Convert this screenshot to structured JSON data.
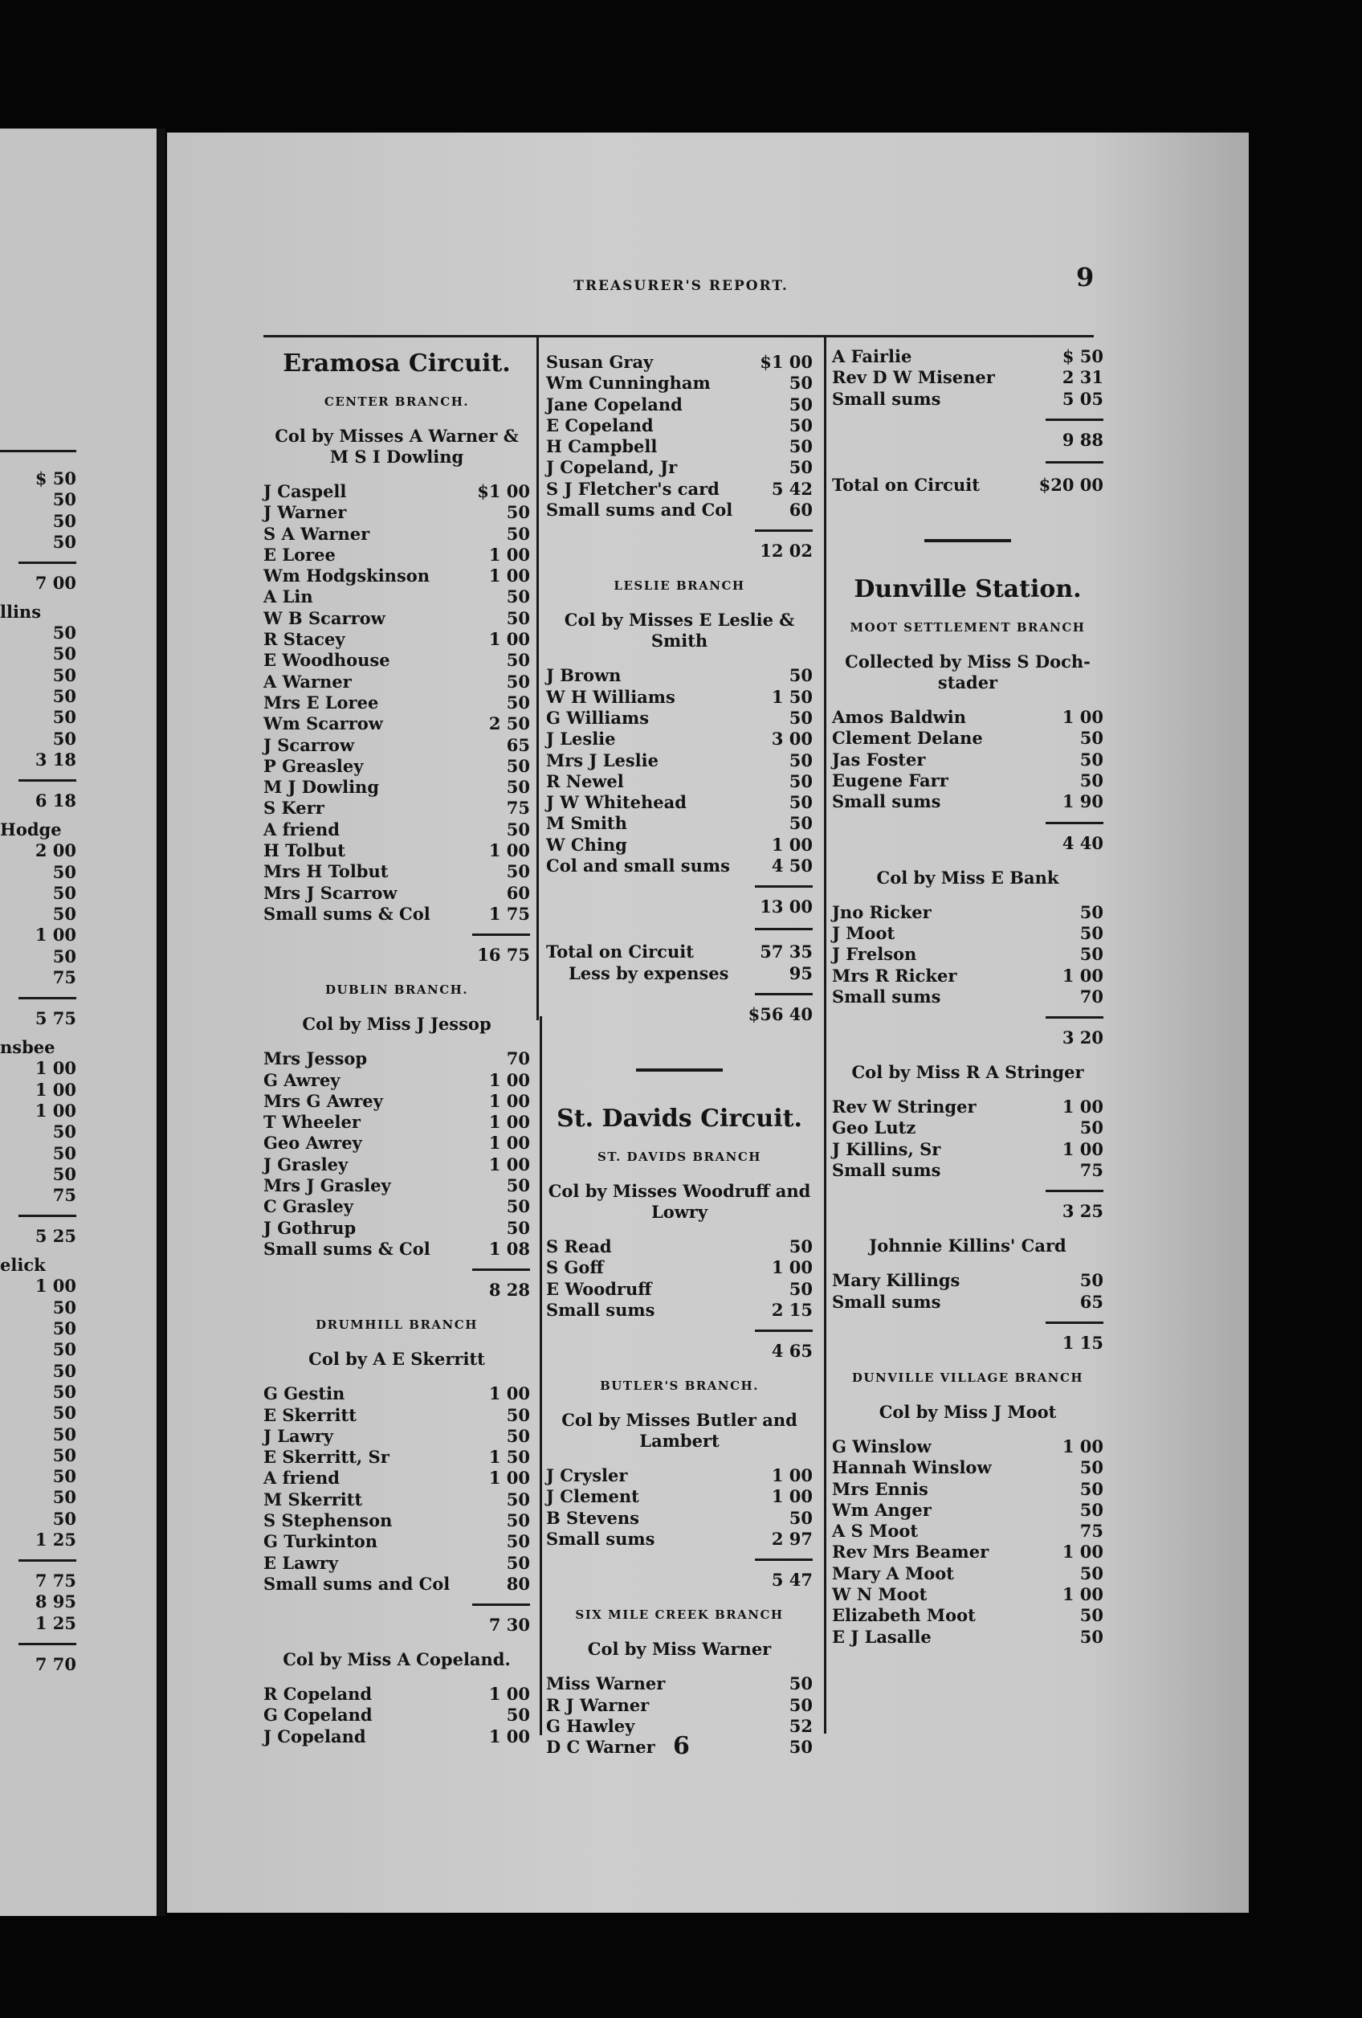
{
  "header": {
    "running_title": "TREASURER'S REPORT.",
    "page_number": "9"
  },
  "footer": {
    "signature_mark": "6"
  },
  "left_page_fragment": {
    "items": [
      {
        "type": "entry",
        "amount": "$ 50"
      },
      {
        "type": "entry",
        "amount": "50"
      },
      {
        "type": "entry",
        "amount": "50"
      },
      {
        "type": "entry",
        "amount": "50"
      },
      {
        "type": "subtotal",
        "amount": "7 00"
      },
      {
        "type": "fragment",
        "text": "llins"
      },
      {
        "type": "entry",
        "amount": "50"
      },
      {
        "type": "entry",
        "amount": "50"
      },
      {
        "type": "entry",
        "amount": "50"
      },
      {
        "type": "entry",
        "amount": "50"
      },
      {
        "type": "entry",
        "amount": "50"
      },
      {
        "type": "entry",
        "amount": "50"
      },
      {
        "type": "entry",
        "amount": "3 18"
      },
      {
        "type": "subtotal",
        "amount": "6 18"
      },
      {
        "type": "fragment",
        "text": "Hodge"
      },
      {
        "type": "entry",
        "amount": "2 00"
      },
      {
        "type": "entry",
        "amount": "50"
      },
      {
        "type": "entry",
        "amount": "50"
      },
      {
        "type": "entry",
        "amount": "50"
      },
      {
        "type": "entry",
        "amount": "1 00"
      },
      {
        "type": "entry",
        "amount": "50"
      },
      {
        "type": "entry",
        "amount": "75"
      },
      {
        "type": "subtotal",
        "amount": "5 75"
      },
      {
        "type": "fragment",
        "text": "nsbee"
      },
      {
        "type": "entry",
        "amount": "1 00"
      },
      {
        "type": "entry",
        "amount": "1 00"
      },
      {
        "type": "entry",
        "amount": "1 00"
      },
      {
        "type": "entry",
        "amount": "50"
      },
      {
        "type": "entry",
        "amount": "50"
      },
      {
        "type": "entry",
        "amount": "50"
      },
      {
        "type": "entry",
        "amount": "75"
      },
      {
        "type": "subtotal",
        "amount": "5 25"
      },
      {
        "type": "fragment",
        "text": "elick"
      },
      {
        "type": "entry",
        "amount": "1 00"
      },
      {
        "type": "entry",
        "amount": "50"
      },
      {
        "type": "entry",
        "amount": "50"
      },
      {
        "type": "entry",
        "amount": "50"
      },
      {
        "type": "entry",
        "amount": "50"
      },
      {
        "type": "entry",
        "amount": "50"
      },
      {
        "type": "entry",
        "amount": "50"
      },
      {
        "type": "entry",
        "amount": "50"
      },
      {
        "type": "entry",
        "amount": "50"
      },
      {
        "type": "entry",
        "amount": "50"
      },
      {
        "type": "entry",
        "amount": "50"
      },
      {
        "type": "entry",
        "amount": "50"
      },
      {
        "type": "entry",
        "amount": "1 25"
      },
      {
        "type": "subtotal",
        "amount": "7 75"
      },
      {
        "type": "entry",
        "amount": "8 95"
      },
      {
        "type": "entry",
        "amount": "1 25"
      },
      {
        "type": "subtotal",
        "amount": "7 70"
      }
    ]
  },
  "columns": [
    {
      "items": [
        {
          "type": "title",
          "text": "Eramosa Circuit."
        },
        {
          "type": "branch",
          "text": "CENTER BRANCH."
        },
        {
          "type": "collector",
          "text": "Col by Misses A Warner & M S I Dowling"
        },
        {
          "type": "entry",
          "name": "J Caspell",
          "amount": "$1 00"
        },
        {
          "type": "entry",
          "name": "J Warner",
          "amount": "50"
        },
        {
          "type": "entry",
          "name": "S A Warner",
          "amount": "50"
        },
        {
          "type": "entry",
          "name": "E Loree",
          "amount": "1 00"
        },
        {
          "type": "entry",
          "name": "Wm Hodgskinson",
          "amount": "1 00"
        },
        {
          "type": "entry",
          "name": "A Lin",
          "amount": "50"
        },
        {
          "type": "entry",
          "name": "W B Scarrow",
          "amount": "50"
        },
        {
          "type": "entry",
          "name": "R Stacey",
          "amount": "1 00"
        },
        {
          "type": "entry",
          "name": "E Woodhouse",
          "amount": "50"
        },
        {
          "type": "entry",
          "name": "A Warner",
          "amount": "50"
        },
        {
          "type": "entry",
          "name": "Mrs E Loree",
          "amount": "50"
        },
        {
          "type": "entry",
          "name": "Wm Scarrow",
          "amount": "2 50"
        },
        {
          "type": "entry",
          "name": "J Scarrow",
          "amount": "65"
        },
        {
          "type": "entry",
          "name": "P Greasley",
          "amount": "50"
        },
        {
          "type": "entry",
          "name": "M J Dowling",
          "amount": "50"
        },
        {
          "type": "entry",
          "name": "S Kerr",
          "amount": "75"
        },
        {
          "type": "entry",
          "name": "A friend",
          "amount": "50"
        },
        {
          "type": "entry",
          "name": "H Tolbut",
          "amount": "1 00"
        },
        {
          "type": "entry",
          "name": "Mrs H Tolbut",
          "amount": "50"
        },
        {
          "type": "entry",
          "name": "Mrs J Scarrow",
          "amount": "60"
        },
        {
          "type": "entry",
          "name": "Small sums & Col",
          "amount": "1 75"
        },
        {
          "type": "subtotal",
          "amount": "16 75"
        },
        {
          "type": "branch",
          "text": "DUBLIN BRANCH."
        },
        {
          "type": "collector",
          "text": "Col by Miss J Jessop"
        },
        {
          "type": "entry",
          "name": "Mrs Jessop",
          "amount": "70"
        },
        {
          "type": "entry",
          "name": "G Awrey",
          "amount": "1 00"
        },
        {
          "type": "entry",
          "name": "Mrs G Awrey",
          "amount": "1 00"
        },
        {
          "type": "entry",
          "name": "T Wheeler",
          "amount": "1 00"
        },
        {
          "type": "entry",
          "name": "Geo Awrey",
          "amount": "1 00"
        },
        {
          "type": "entry",
          "name": "J Grasley",
          "amount": "1 00"
        },
        {
          "type": "entry",
          "name": "Mrs J Grasley",
          "amount": "50"
        },
        {
          "type": "entry",
          "name": "C Grasley",
          "amount": "50"
        },
        {
          "type": "entry",
          "name": "J Gothrup",
          "amount": "50"
        },
        {
          "type": "entry",
          "name": "Small sums & Col",
          "amount": "1 08"
        },
        {
          "type": "subtotal",
          "amount": "8 28"
        },
        {
          "type": "branch",
          "text": "DRUMHILL BRANCH"
        },
        {
          "type": "collector",
          "text": "Col by A E Skerritt"
        },
        {
          "type": "entry",
          "name": "G Gestin",
          "amount": "1 00"
        },
        {
          "type": "entry",
          "name": "E Skerritt",
          "amount": "50"
        },
        {
          "type": "entry",
          "name": "J Lawry",
          "amount": "50"
        },
        {
          "type": "entry",
          "name": "E Skerritt, Sr",
          "amount": "1 50"
        },
        {
          "type": "entry",
          "name": "A friend",
          "amount": "1 00"
        },
        {
          "type": "entry",
          "name": "M Skerritt",
          "amount": "50"
        },
        {
          "type": "entry",
          "name": "S Stephenson",
          "amount": "50"
        },
        {
          "type": "entry",
          "name": "G Turkinton",
          "amount": "50"
        },
        {
          "type": "entry",
          "name": "E Lawry",
          "amount": "50"
        },
        {
          "type": "entry",
          "name": "Small sums and Col",
          "amount": "80"
        },
        {
          "type": "subtotal",
          "amount": "7 30"
        },
        {
          "type": "collector",
          "text": "Col by Miss A Copeland."
        },
        {
          "type": "entry",
          "name": "R Copeland",
          "amount": "1 00"
        },
        {
          "type": "entry",
          "name": "G Copeland",
          "amount": "50"
        },
        {
          "type": "entry",
          "name": "J Copeland",
          "amount": "1 00"
        }
      ]
    },
    {
      "items": [
        {
          "type": "entry",
          "name": "Susan Gray",
          "amount": "$1 00"
        },
        {
          "type": "entry",
          "name": "Wm Cunningham",
          "amount": "50"
        },
        {
          "type": "entry",
          "name": "Jane Copeland",
          "amount": "50"
        },
        {
          "type": "entry",
          "name": "E Copeland",
          "amount": "50"
        },
        {
          "type": "entry",
          "name": "H Campbell",
          "amount": "50"
        },
        {
          "type": "entry",
          "name": "J Copeland, Jr",
          "amount": "50"
        },
        {
          "type": "entry",
          "name": "S J Fletcher's card",
          "amount": "5 42"
        },
        {
          "type": "entry",
          "name": "Small sums and Col",
          "amount": "60"
        },
        {
          "type": "subtotal",
          "amount": "12 02"
        },
        {
          "type": "branch",
          "text": "LESLIE BRANCH"
        },
        {
          "type": "collector",
          "text": "Col by Misses E Leslie & Smith"
        },
        {
          "type": "entry",
          "name": "J Brown",
          "amount": "50"
        },
        {
          "type": "entry",
          "name": "W H Williams",
          "amount": "1 50"
        },
        {
          "type": "entry",
          "name": "G Williams",
          "amount": "50"
        },
        {
          "type": "entry",
          "name": "J Leslie",
          "amount": "3 00"
        },
        {
          "type": "entry",
          "name": "Mrs J Leslie",
          "amount": "50"
        },
        {
          "type": "entry",
          "name": "R Newel",
          "amount": "50"
        },
        {
          "type": "entry",
          "name": "J W Whitehead",
          "amount": "50"
        },
        {
          "type": "entry",
          "name": "M Smith",
          "amount": "50"
        },
        {
          "type": "entry",
          "name": "W Ching",
          "amount": "1 00"
        },
        {
          "type": "entry",
          "name": "Col and small sums",
          "amount": "4 50"
        },
        {
          "type": "subtotal",
          "amount": "13 00"
        },
        {
          "type": "total",
          "name": "Total on Circuit",
          "amount": "57 35"
        },
        {
          "type": "deduction",
          "name": "Less by expenses",
          "amount": "95"
        },
        {
          "type": "subtotal",
          "amount": "$56 40"
        },
        {
          "type": "divider"
        },
        {
          "type": "title",
          "text": "St. Davids Circuit."
        },
        {
          "type": "branch",
          "text": "ST. DAVIDS BRANCH"
        },
        {
          "type": "collector",
          "text": "Col by Misses Woodruff and Lowry"
        },
        {
          "type": "entry",
          "name": "S Read",
          "amount": "50"
        },
        {
          "type": "entry",
          "name": "S Goff",
          "amount": "1 00"
        },
        {
          "type": "entry",
          "name": "E Woodruff",
          "amount": "50"
        },
        {
          "type": "entry",
          "name": "Small sums",
          "amount": "2 15"
        },
        {
          "type": "subtotal",
          "amount": "4 65"
        },
        {
          "type": "branch",
          "text": "BUTLER'S BRANCH."
        },
        {
          "type": "collector",
          "text": "Col by Misses Butler and Lambert"
        },
        {
          "type": "entry",
          "name": "J Crysler",
          "amount": "1 00"
        },
        {
          "type": "entry",
          "name": "J Clement",
          "amount": "1 00"
        },
        {
          "type": "entry",
          "name": "B Stevens",
          "amount": "50"
        },
        {
          "type": "entry",
          "name": "Small sums",
          "amount": "2 97"
        },
        {
          "type": "subtotal",
          "amount": "5 47"
        },
        {
          "type": "branch",
          "text": "SIX MILE CREEK BRANCH"
        },
        {
          "type": "collector",
          "text": "Col by Miss Warner"
        },
        {
          "type": "entry",
          "name": "Miss Warner",
          "amount": "50"
        },
        {
          "type": "entry",
          "name": "R J Warner",
          "amount": "50"
        },
        {
          "type": "entry",
          "name": "G Hawley",
          "amount": "52"
        },
        {
          "type": "entry",
          "name": "D C Warner",
          "amount": "50"
        }
      ]
    },
    {
      "items": [
        {
          "type": "entry",
          "name": "A Fairlie",
          "amount": "$ 50"
        },
        {
          "type": "entry",
          "name": "Rev D W Misener",
          "amount": "2 31"
        },
        {
          "type": "entry",
          "name": "Small sums",
          "amount": "5 05"
        },
        {
          "type": "subtotal",
          "amount": "9 88"
        },
        {
          "type": "total",
          "name": "Total on Circuit",
          "amount": "$20 00"
        },
        {
          "type": "divider"
        },
        {
          "type": "title",
          "text": "Dunville Station."
        },
        {
          "type": "branch",
          "text": "MOOT SETTLEMENT BRANCH"
        },
        {
          "type": "collector",
          "text": "Collected by Miss S Doch-stader"
        },
        {
          "type": "entry",
          "name": "Amos Baldwin",
          "amount": "1 00"
        },
        {
          "type": "entry",
          "name": "Clement Delane",
          "amount": "50"
        },
        {
          "type": "entry",
          "name": "Jas Foster",
          "amount": "50"
        },
        {
          "type": "entry",
          "name": "Eugene Farr",
          "amount": "50"
        },
        {
          "type": "entry",
          "name": "Small sums",
          "amount": "1 90"
        },
        {
          "type": "subtotal",
          "amount": "4 40"
        },
        {
          "type": "collector",
          "text": "Col by Miss E Bank"
        },
        {
          "type": "entry",
          "name": "Jno Ricker",
          "amount": "50"
        },
        {
          "type": "entry",
          "name": "J Moot",
          "amount": "50"
        },
        {
          "type": "entry",
          "name": "J Frelson",
          "amount": "50"
        },
        {
          "type": "entry",
          "name": "Mrs R Ricker",
          "amount": "1 00"
        },
        {
          "type": "entry",
          "name": "Small sums",
          "amount": "70"
        },
        {
          "type": "subtotal",
          "amount": "3 20"
        },
        {
          "type": "collector",
          "text": "Col by Miss R A Stringer"
        },
        {
          "type": "entry",
          "name": "Rev W Stringer",
          "amount": "1 00"
        },
        {
          "type": "entry",
          "name": "Geo Lutz",
          "amount": "50"
        },
        {
          "type": "entry",
          "name": "J Killins, Sr",
          "amount": "1 00"
        },
        {
          "type": "entry",
          "name": "Small sums",
          "amount": "75"
        },
        {
          "type": "subtotal",
          "amount": "3 25"
        },
        {
          "type": "collector",
          "text": "Johnnie Killins' Card"
        },
        {
          "type": "entry",
          "name": "Mary Killings",
          "amount": "50"
        },
        {
          "type": "entry",
          "name": "Small sums",
          "amount": "65"
        },
        {
          "type": "subtotal",
          "amount": "1 15"
        },
        {
          "type": "branch",
          "text": "DUNVILLE VILLAGE BRANCH"
        },
        {
          "type": "collector",
          "text": "Col by Miss J Moot"
        },
        {
          "type": "entry",
          "name": "G Winslow",
          "amount": "1 00"
        },
        {
          "type": "entry",
          "name": "Hannah Winslow",
          "amount": "50"
        },
        {
          "type": "entry",
          "name": "Mrs Ennis",
          "amount": "50"
        },
        {
          "type": "entry",
          "name": "Wm Anger",
          "amount": "50"
        },
        {
          "type": "entry",
          "name": "A S Moot",
          "amount": "75"
        },
        {
          "type": "entry",
          "name": "Rev Mrs Beamer",
          "amount": "1 00"
        },
        {
          "type": "entry",
          "name": "Mary A Moot",
          "amount": "50"
        },
        {
          "type": "entry",
          "name": "W N Moot",
          "amount": "1 00"
        },
        {
          "type": "entry",
          "name": "Elizabeth Moot",
          "amount": "50"
        },
        {
          "type": "entry",
          "name": "E J Lasalle",
          "amount": "50"
        }
      ]
    }
  ]
}
